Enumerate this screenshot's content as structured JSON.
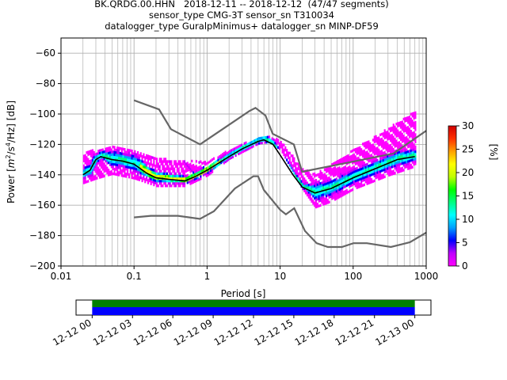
{
  "title": {
    "line1": "BK.QRDG.00.HHN   2018-12-11 -- 2018-12-12  (47/47 segments)",
    "line2": "sensor_type CMG-3T sensor_sn T310034",
    "line3": "datalogger_type GuralpMinimus+ datalogger_sn MINP-DF59"
  },
  "chart_data": [
    {
      "type": "heatmap",
      "subtype": "probabilistic power spectral density",
      "xlabel": "Period [s]",
      "xscale": "log",
      "xlim": [
        0.01,
        1000
      ],
      "xticks": [
        0.01,
        0.1,
        1,
        10,
        100,
        1000
      ],
      "xtick_labels": [
        "0.01",
        "0.1",
        "1",
        "10",
        "100",
        "1000"
      ],
      "ylabel_parts": {
        "prefix": "Power [",
        "m": "m",
        "exp1": "2",
        "s": "/s",
        "exp2": "4",
        "suffix": "/Hz] [dB]"
      },
      "ylim": [
        -200,
        -50
      ],
      "yticks": [
        -200,
        -180,
        -160,
        -140,
        -120,
        -100,
        -80,
        -60
      ],
      "grid": true,
      "colorbar": {
        "label": "[%]",
        "range": [
          0,
          30
        ],
        "ticks": [
          0,
          5,
          10,
          15,
          20,
          25,
          30
        ],
        "colormap": [
          "#ff00ff",
          "#c000ff",
          "#0000ff",
          "#00a0ff",
          "#00ffff",
          "#00ff80",
          "#00ff00",
          "#c0ff00",
          "#ffff00",
          "#ffa000",
          "#ff3000",
          "#d00000"
        ]
      },
      "mode_curve": [
        [
          0.02,
          -140
        ],
        [
          0.025,
          -137
        ],
        [
          0.03,
          -130
        ],
        [
          0.035,
          -128
        ],
        [
          0.05,
          -130
        ],
        [
          0.07,
          -131
        ],
        [
          0.1,
          -133
        ],
        [
          0.15,
          -139
        ],
        [
          0.2,
          -142
        ],
        [
          0.3,
          -143
        ],
        [
          0.5,
          -144
        ],
        [
          0.7,
          -141
        ],
        [
          1,
          -137
        ],
        [
          2,
          -128
        ],
        [
          3,
          -123
        ],
        [
          5,
          -118
        ],
        [
          6,
          -117
        ],
        [
          8,
          -120
        ],
        [
          10,
          -127
        ],
        [
          15,
          -140
        ],
        [
          20,
          -148
        ],
        [
          30,
          -152
        ],
        [
          50,
          -149
        ],
        [
          100,
          -142
        ],
        [
          200,
          -136
        ],
        [
          400,
          -130
        ],
        [
          700,
          -128
        ]
      ],
      "noise_model_high": [
        [
          0.1,
          -91
        ],
        [
          0.22,
          -97
        ],
        [
          0.32,
          -110
        ],
        [
          0.8,
          -120
        ],
        [
          3.8,
          -98
        ],
        [
          4.6,
          -96
        ],
        [
          6.3,
          -101
        ],
        [
          7.9,
          -113
        ],
        [
          15.4,
          -120
        ],
        [
          20,
          -138
        ],
        [
          354.8,
          -126
        ],
        [
          1000,
          -111
        ]
      ],
      "noise_model_low": [
        [
          0.1,
          -168
        ],
        [
          0.17,
          -167
        ],
        [
          0.4,
          -167
        ],
        [
          0.8,
          -169
        ],
        [
          1.24,
          -164
        ],
        [
          2.4,
          -149
        ],
        [
          4.3,
          -141
        ],
        [
          5,
          -141
        ],
        [
          6,
          -150
        ],
        [
          10,
          -163
        ],
        [
          12,
          -166
        ],
        [
          15.6,
          -162
        ],
        [
          21.9,
          -177
        ],
        [
          31.6,
          -185
        ],
        [
          45,
          -187.5
        ],
        [
          70,
          -187.5
        ],
        [
          101,
          -185
        ],
        [
          154,
          -185
        ],
        [
          328,
          -187.5
        ],
        [
          600,
          -184.4
        ],
        [
          1000,
          -178
        ]
      ],
      "distribution_bands": [
        {
          "x": [
            0.02,
            0.03,
            0.05,
            0.1,
            0.2,
            0.5,
            1,
            2,
            5,
            7,
            10,
            20,
            30,
            50,
            100,
            300,
            700
          ],
          "y": [
            -126,
            -124,
            -121,
            -124,
            -130,
            -131,
            -132,
            -124,
            -116,
            -115,
            -118,
            -137,
            -140,
            -134,
            -124,
            -110,
            -98
          ]
        },
        {
          "x": [
            0.02,
            0.03,
            0.05,
            0.1,
            0.2,
            0.5,
            1,
            2,
            5,
            7,
            10,
            20,
            30,
            50,
            100,
            300,
            700
          ],
          "y": [
            -146,
            -143,
            -140,
            -143,
            -148,
            -148,
            -141,
            -130,
            -120,
            -119,
            -124,
            -150,
            -162,
            -158,
            -150,
            -141,
            -135
          ]
        }
      ]
    },
    {
      "type": "bar",
      "subtype": "data coverage timeline",
      "x_tick_labels": [
        "12-12 00",
        "12-12 03",
        "12-12 06",
        "12-12 09",
        "12-12 12",
        "12-12 15",
        "12-12 18",
        "12-12 21",
        "12-13 00"
      ],
      "x_range_hours": [
        -1.2,
        25.2
      ],
      "series": [
        {
          "color": "#008000",
          "start_hour": 0,
          "end_hour": 24
        },
        {
          "color": "#0000ff",
          "start_hour": 0,
          "end_hour": 24
        }
      ]
    }
  ]
}
